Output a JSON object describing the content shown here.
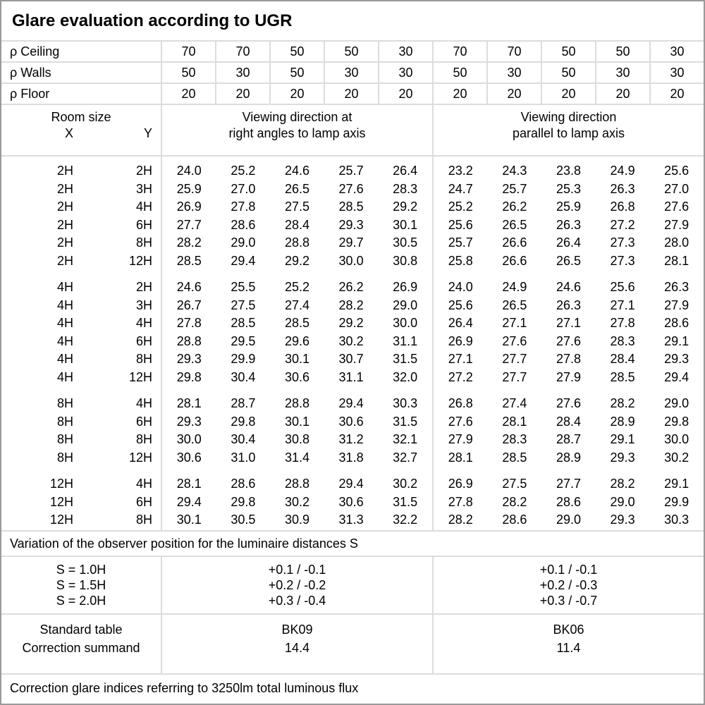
{
  "title": "Glare evaluation according to UGR",
  "reflectance_rows": [
    {
      "label": "ρ Ceiling",
      "values": [
        "70",
        "70",
        "50",
        "50",
        "30",
        "70",
        "70",
        "50",
        "50",
        "30"
      ]
    },
    {
      "label": "ρ Walls",
      "values": [
        "50",
        "30",
        "50",
        "30",
        "30",
        "50",
        "30",
        "50",
        "30",
        "30"
      ]
    },
    {
      "label": "ρ Floor",
      "values": [
        "20",
        "20",
        "20",
        "20",
        "20",
        "20",
        "20",
        "20",
        "20",
        "20"
      ]
    }
  ],
  "header": {
    "room_size_label": "Room size",
    "x_label": "X",
    "y_label": "Y",
    "group_right_angles_line1": "Viewing direction at",
    "group_right_angles_line2": "right angles to lamp axis",
    "group_parallel_line1": "Viewing direction",
    "group_parallel_line2": "parallel to lamp axis"
  },
  "data_groups": [
    {
      "rows": [
        {
          "x": "2H",
          "y": "2H",
          "v": [
            "24.0",
            "25.2",
            "24.6",
            "25.7",
            "26.4",
            "23.2",
            "24.3",
            "23.8",
            "24.9",
            "25.6"
          ]
        },
        {
          "x": "2H",
          "y": "3H",
          "v": [
            "25.9",
            "27.0",
            "26.5",
            "27.6",
            "28.3",
            "24.7",
            "25.7",
            "25.3",
            "26.3",
            "27.0"
          ]
        },
        {
          "x": "2H",
          "y": "4H",
          "v": [
            "26.9",
            "27.8",
            "27.5",
            "28.5",
            "29.2",
            "25.2",
            "26.2",
            "25.9",
            "26.8",
            "27.6"
          ]
        },
        {
          "x": "2H",
          "y": "6H",
          "v": [
            "27.7",
            "28.6",
            "28.4",
            "29.3",
            "30.1",
            "25.6",
            "26.5",
            "26.3",
            "27.2",
            "27.9"
          ]
        },
        {
          "x": "2H",
          "y": "8H",
          "v": [
            "28.2",
            "29.0",
            "28.8",
            "29.7",
            "30.5",
            "25.7",
            "26.6",
            "26.4",
            "27.3",
            "28.0"
          ]
        },
        {
          "x": "2H",
          "y": "12H",
          "v": [
            "28.5",
            "29.4",
            "29.2",
            "30.0",
            "30.8",
            "25.8",
            "26.6",
            "26.5",
            "27.3",
            "28.1"
          ]
        }
      ]
    },
    {
      "rows": [
        {
          "x": "4H",
          "y": "2H",
          "v": [
            "24.6",
            "25.5",
            "25.2",
            "26.2",
            "26.9",
            "24.0",
            "24.9",
            "24.6",
            "25.6",
            "26.3"
          ]
        },
        {
          "x": "4H",
          "y": "3H",
          "v": [
            "26.7",
            "27.5",
            "27.4",
            "28.2",
            "29.0",
            "25.6",
            "26.5",
            "26.3",
            "27.1",
            "27.9"
          ]
        },
        {
          "x": "4H",
          "y": "4H",
          "v": [
            "27.8",
            "28.5",
            "28.5",
            "29.2",
            "30.0",
            "26.4",
            "27.1",
            "27.1",
            "27.8",
            "28.6"
          ]
        },
        {
          "x": "4H",
          "y": "6H",
          "v": [
            "28.8",
            "29.5",
            "29.6",
            "30.2",
            "31.1",
            "26.9",
            "27.6",
            "27.6",
            "28.3",
            "29.1"
          ]
        },
        {
          "x": "4H",
          "y": "8H",
          "v": [
            "29.3",
            "29.9",
            "30.1",
            "30.7",
            "31.5",
            "27.1",
            "27.7",
            "27.8",
            "28.4",
            "29.3"
          ]
        },
        {
          "x": "4H",
          "y": "12H",
          "v": [
            "29.8",
            "30.4",
            "30.6",
            "31.1",
            "32.0",
            "27.2",
            "27.7",
            "27.9",
            "28.5",
            "29.4"
          ]
        }
      ]
    },
    {
      "rows": [
        {
          "x": "8H",
          "y": "4H",
          "v": [
            "28.1",
            "28.7",
            "28.8",
            "29.4",
            "30.3",
            "26.8",
            "27.4",
            "27.6",
            "28.2",
            "29.0"
          ]
        },
        {
          "x": "8H",
          "y": "6H",
          "v": [
            "29.3",
            "29.8",
            "30.1",
            "30.6",
            "31.5",
            "27.6",
            "28.1",
            "28.4",
            "28.9",
            "29.8"
          ]
        },
        {
          "x": "8H",
          "y": "8H",
          "v": [
            "30.0",
            "30.4",
            "30.8",
            "31.2",
            "32.1",
            "27.9",
            "28.3",
            "28.7",
            "29.1",
            "30.0"
          ]
        },
        {
          "x": "8H",
          "y": "12H",
          "v": [
            "30.6",
            "31.0",
            "31.4",
            "31.8",
            "32.7",
            "28.1",
            "28.5",
            "28.9",
            "29.3",
            "30.2"
          ]
        }
      ]
    },
    {
      "rows": [
        {
          "x": "12H",
          "y": "4H",
          "v": [
            "28.1",
            "28.6",
            "28.8",
            "29.4",
            "30.2",
            "26.9",
            "27.5",
            "27.7",
            "28.2",
            "29.1"
          ]
        },
        {
          "x": "12H",
          "y": "6H",
          "v": [
            "29.4",
            "29.8",
            "30.2",
            "30.6",
            "31.5",
            "27.8",
            "28.2",
            "28.6",
            "29.0",
            "29.9"
          ]
        },
        {
          "x": "12H",
          "y": "8H",
          "v": [
            "30.1",
            "30.5",
            "30.9",
            "31.3",
            "32.2",
            "28.2",
            "28.6",
            "29.0",
            "29.3",
            "30.3"
          ]
        }
      ]
    }
  ],
  "variation_note": "Variation of the observer position for the luminaire distances S",
  "s_section": {
    "labels": [
      "S = 1.0H",
      "S = 1.5H",
      "S = 2.0H"
    ],
    "right_angles": [
      "+0.1 / -0.1",
      "+0.2 / -0.2",
      "+0.3 / -0.4"
    ],
    "parallel": [
      "+0.1 / -0.1",
      "+0.2 / -0.3",
      "+0.3 / -0.7"
    ]
  },
  "standard_section": {
    "labels": [
      "Standard table",
      "Correction summand"
    ],
    "right_angles": [
      "BK09",
      "14.4"
    ],
    "parallel": [
      "BK06",
      "11.4"
    ]
  },
  "footer_note": "Correction glare indices referring to 3250lm total luminous flux"
}
